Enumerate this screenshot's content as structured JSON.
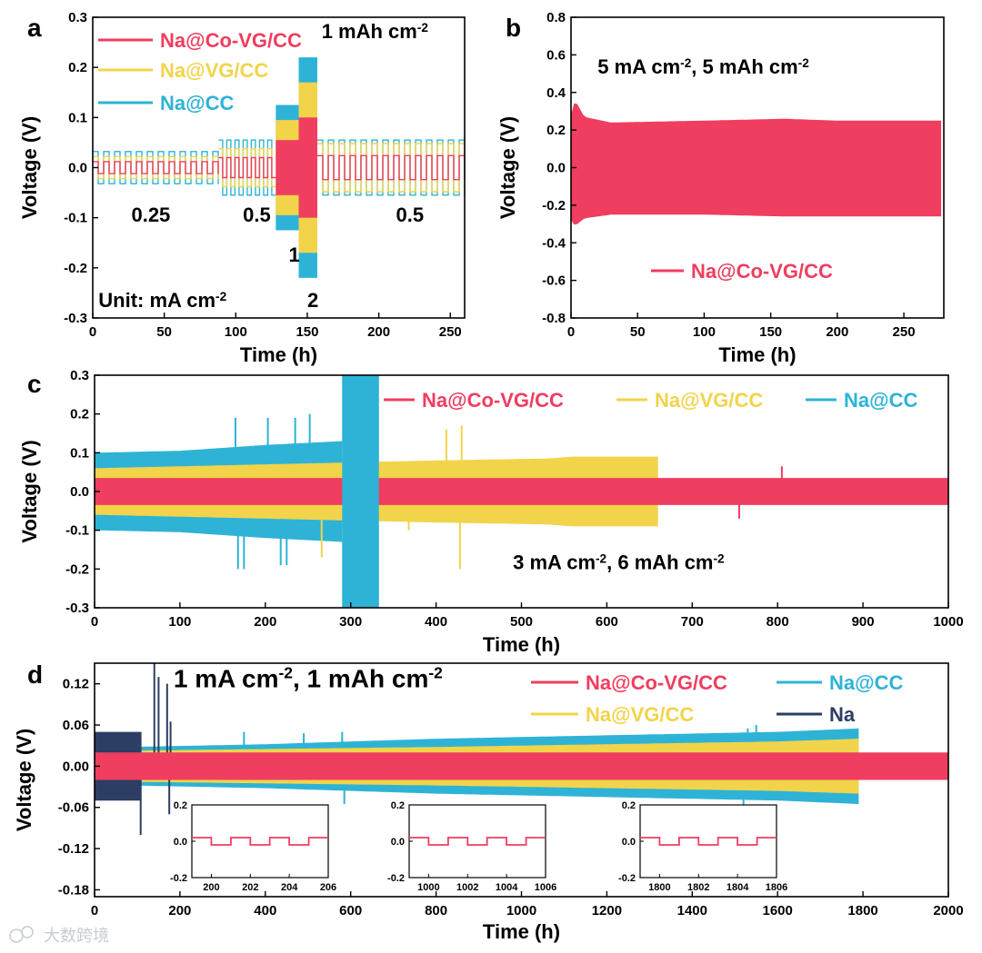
{
  "colors": {
    "co_vg": "#ef3e5f",
    "vg": "#f1d44a",
    "cc": "#2eb3d6",
    "na": "#2c3e63",
    "axis": "#000000"
  },
  "chart_data": [
    {
      "id": "a",
      "type": "line",
      "panel_label": "a",
      "xlabel": "Time (h)",
      "ylabel": "Voltage (V)",
      "xlim": [
        0,
        260
      ],
      "ylim": [
        -0.3,
        0.3
      ],
      "xticks": [
        0,
        50,
        100,
        150,
        200,
        250
      ],
      "yticks": [
        -0.3,
        -0.2,
        -0.1,
        0.0,
        0.1,
        0.2,
        0.3
      ],
      "ytick_labels": [
        "-0.3",
        "-0.2",
        "-0.1",
        "0.0",
        "0.1",
        "0.2",
        "0.3"
      ],
      "annotations": [
        {
          "text": "1 mAh cm",
          "sup": "-2",
          "at": [
            160,
            0.258
          ]
        },
        {
          "text": "0.25",
          "at": [
            27,
            -0.108
          ]
        },
        {
          "text": "0.5",
          "at": [
            105,
            -0.108
          ]
        },
        {
          "text": "0.5",
          "at": [
            212,
            -0.108
          ]
        },
        {
          "text": "1",
          "at": [
            137,
            -0.188
          ]
        },
        {
          "text": "2",
          "at": [
            150,
            -0.278
          ]
        },
        {
          "text": "Unit: mA cm",
          "sup": "-2",
          "at": [
            4,
            -0.278
          ]
        }
      ],
      "segments": [
        {
          "x": [
            0,
            88
          ],
          "rate": "0.25",
          "amp": {
            "cc": 0.032,
            "vg": 0.022,
            "co_vg": 0.012
          }
        },
        {
          "x": [
            88,
            128
          ],
          "rate": "0.5",
          "amp": {
            "cc": 0.055,
            "vg": 0.038,
            "co_vg": 0.02
          }
        },
        {
          "x": [
            128,
            144
          ],
          "rate": "1",
          "amp": {
            "cc": 0.125,
            "vg": 0.095,
            "co_vg": 0.055
          }
        },
        {
          "x": [
            144,
            157
          ],
          "rate": "2",
          "amp": {
            "cc": 0.22,
            "vg": 0.17,
            "co_vg": 0.1
          }
        },
        {
          "x": [
            157,
            260
          ],
          "rate": "0.5",
          "amp": {
            "cc": 0.055,
            "vg": 0.048,
            "co_vg": 0.024
          }
        }
      ],
      "series": [
        {
          "name": "Na@Co-VG/CC",
          "color_key": "co_vg"
        },
        {
          "name": "Na@VG/CC",
          "color_key": "vg"
        },
        {
          "name": "Na@CC",
          "color_key": "cc"
        }
      ]
    },
    {
      "id": "b",
      "type": "line",
      "panel_label": "b",
      "xlabel": "Time (h)",
      "ylabel": "Voltage (V)",
      "xlim": [
        0,
        280
      ],
      "ylim": [
        -0.8,
        0.8
      ],
      "xticks": [
        0,
        50,
        100,
        150,
        200,
        250
      ],
      "yticks": [
        -0.8,
        -0.6,
        -0.4,
        -0.2,
        0.0,
        0.2,
        0.4,
        0.6,
        0.8
      ],
      "ytick_labels": [
        "-0.8",
        "-0.6",
        "-0.4",
        "-0.2",
        "0.0",
        "0.2",
        "0.4",
        "0.6",
        "0.8"
      ],
      "annotations": [
        {
          "parts": [
            "5 mA cm",
            "-2",
            ", 5 mAh cm",
            "-2"
          ],
          "at": [
            20,
            0.5
          ]
        }
      ],
      "envelope": {
        "x": [
          0,
          3,
          10,
          30,
          100,
          160,
          200,
          278
        ],
        "upper": [
          0.28,
          0.36,
          0.27,
          0.24,
          0.25,
          0.26,
          0.25,
          0.25
        ],
        "lower": [
          -0.28,
          -0.31,
          -0.27,
          -0.25,
          -0.25,
          -0.26,
          -0.26,
          -0.26
        ]
      },
      "series": [
        {
          "name": "Na@Co-VG/CC",
          "color_key": "co_vg"
        }
      ]
    },
    {
      "id": "c",
      "type": "line",
      "panel_label": "c",
      "xlabel": "Time (h)",
      "ylabel": "Voltage (V)",
      "xlim": [
        0,
        1000
      ],
      "ylim": [
        -0.3,
        0.3
      ],
      "xticks": [
        0,
        100,
        200,
        300,
        400,
        500,
        600,
        700,
        800,
        900,
        1000
      ],
      "yticks": [
        -0.3,
        -0.2,
        -0.1,
        0.0,
        0.1,
        0.2,
        0.3
      ],
      "ytick_labels": [
        "-0.3",
        "-0.2",
        "-0.1",
        "0.0",
        "0.1",
        "0.2",
        "0.3"
      ],
      "annotations": [
        {
          "parts": [
            "3 mA cm",
            "-2",
            ", 6 mAh cm",
            "-2"
          ],
          "at": [
            490,
            -0.2
          ]
        }
      ],
      "cc_envelope": {
        "x": [
          0,
          100,
          200,
          290
        ],
        "amp": [
          0.1,
          0.105,
          0.12,
          0.13
        ]
      },
      "cc_block": {
        "x": [
          290,
          333
        ]
      },
      "vg_envelope": {
        "x": [
          0,
          200,
          400,
          530,
          560,
          660
        ],
        "amp": [
          0.06,
          0.07,
          0.08,
          0.085,
          0.09,
          0.09
        ]
      },
      "co_envelope": {
        "x": [
          0,
          1000
        ],
        "amp": [
          0.035,
          0.035
        ]
      },
      "spikes_cc": [
        [
          165,
          0.19
        ],
        [
          203,
          0.19
        ],
        [
          235,
          0.19
        ],
        [
          252,
          0.2
        ],
        [
          168,
          -0.2
        ],
        [
          175,
          -0.2
        ],
        [
          218,
          -0.19
        ],
        [
          225,
          -0.19
        ],
        [
          306,
          -0.21
        ]
      ],
      "spikes_vg": [
        [
          412,
          0.16
        ],
        [
          430,
          0.17
        ],
        [
          266,
          -0.17
        ],
        [
          428,
          -0.2
        ],
        [
          368,
          -0.1
        ]
      ],
      "spikes_co": [
        [
          805,
          0.065
        ],
        [
          755,
          -0.07
        ]
      ],
      "series": [
        {
          "name": "Na@Co-VG/CC",
          "color_key": "co_vg"
        },
        {
          "name": "Na@VG/CC",
          "color_key": "vg"
        },
        {
          "name": "Na@CC",
          "color_key": "cc"
        }
      ]
    },
    {
      "id": "d",
      "type": "line",
      "panel_label": "d",
      "xlabel": "Time (h)",
      "ylabel": "Voltage (V)",
      "xlim": [
        0,
        2000
      ],
      "ylim": [
        -0.19,
        0.15
      ],
      "xticks": [
        0,
        200,
        400,
        600,
        800,
        1000,
        1200,
        1400,
        1600,
        1800,
        2000
      ],
      "yticks": [
        -0.18,
        -0.12,
        -0.06,
        0.0,
        0.06,
        0.12
      ],
      "ytick_labels": [
        "-0.18",
        "-0.12",
        "-0.06",
        "0.00",
        "0.06",
        "0.12"
      ],
      "annotations": [
        {
          "parts": [
            "1 mA cm",
            "-2",
            ", 1 mAh cm",
            "-2"
          ],
          "at": [
            185,
            0.115
          ]
        }
      ],
      "cc_envelope": {
        "x": [
          0,
          400,
          800,
          1200,
          1600,
          1790
        ],
        "amp": [
          0.027,
          0.032,
          0.04,
          0.045,
          0.05,
          0.055
        ]
      },
      "vg_envelope": {
        "x": [
          0,
          400,
          800,
          1200,
          1600,
          1790
        ],
        "amp": [
          0.022,
          0.025,
          0.028,
          0.032,
          0.036,
          0.04
        ]
      },
      "co_envelope": {
        "x": [
          0,
          2000
        ],
        "amp": [
          0.02,
          0.02
        ]
      },
      "na_envelope": {
        "x": [
          0,
          110
        ],
        "amp": [
          0.05,
          0.05
        ]
      },
      "na_spikes": [
        [
          140,
          0.15
        ],
        [
          150,
          0.13
        ],
        [
          170,
          0.12
        ],
        [
          178,
          0.065
        ],
        [
          108,
          -0.1
        ],
        [
          175,
          -0.07
        ]
      ],
      "cc_spikes": [
        [
          350,
          0.05
        ],
        [
          490,
          0.048
        ],
        [
          580,
          0.05
        ],
        [
          1530,
          0.055
        ],
        [
          1550,
          0.06
        ],
        [
          1520,
          -0.07
        ],
        [
          585,
          -0.055
        ]
      ],
      "series": [
        {
          "name": "Na@Co-VG/CC",
          "color_key": "co_vg"
        },
        {
          "name": "Na@CC",
          "color_key": "cc"
        },
        {
          "name": "Na@VG/CC",
          "color_key": "vg"
        },
        {
          "name": "Na",
          "color_key": "na"
        }
      ],
      "insets": [
        {
          "xlim": [
            199,
            206
          ],
          "xticks": [
            200,
            202,
            204,
            206
          ],
          "ylim": [
            -0.2,
            0.2
          ],
          "yticks": [
            -0.2,
            0.0,
            0.2
          ],
          "ytick_labels": [
            "-0.2",
            "0.0",
            "0.2"
          ]
        },
        {
          "xlim": [
            999,
            1006
          ],
          "xticks": [
            1000,
            1002,
            1004,
            1006
          ],
          "ylim": [
            -0.2,
            0.2
          ],
          "yticks": [
            -0.2,
            0.0,
            0.2
          ],
          "ytick_labels": [
            "-0.2",
            "0.0",
            "0.2"
          ]
        },
        {
          "xlim": [
            1799,
            1806
          ],
          "xticks": [
            1800,
            1802,
            1804,
            1806
          ],
          "ylim": [
            -0.2,
            0.2
          ],
          "yticks": [
            -0.2,
            0.0,
            0.2
          ],
          "ytick_labels": [
            "-0.2",
            "0.0",
            "0.2"
          ]
        }
      ]
    }
  ],
  "watermark": "大数跨境"
}
